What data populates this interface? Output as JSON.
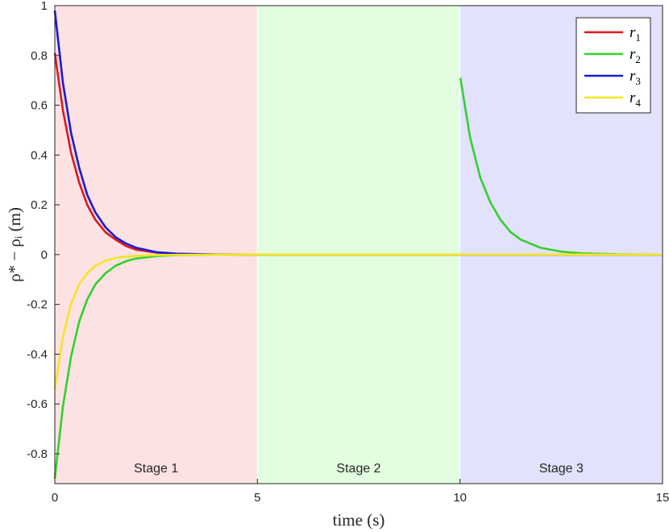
{
  "chart_data": {
    "type": "line",
    "xlabel": "time (s)",
    "ylabel": "ρ* − ρᵢ (m)",
    "xlim": [
      0,
      15
    ],
    "ylim": [
      -0.92,
      1.0
    ],
    "xticks": [
      0,
      5,
      10,
      15
    ],
    "xtick_labels": [
      "0",
      "5",
      "10",
      "15"
    ],
    "yticks": [
      1,
      0.8,
      0.6,
      0.4,
      0.2,
      0,
      -0.2,
      -0.4,
      -0.6,
      -0.8
    ],
    "ytick_labels": [
      "1",
      "0.8",
      "0.6",
      "0.4",
      "0.2",
      "0",
      "-0.2",
      "-0.4",
      "-0.6",
      "-0.8"
    ],
    "grid": false,
    "legend_position": "top-right",
    "stages": [
      {
        "label": "Stage 1",
        "x_start": 0,
        "x_end": 5,
        "color": "#fde2e4"
      },
      {
        "label": "Stage 2",
        "x_start": 5,
        "x_end": 10,
        "color": "#e2fde0"
      },
      {
        "label": "Stage 3",
        "x_start": 10,
        "x_end": 15,
        "color": "#e2e2fc"
      }
    ],
    "series": [
      {
        "name": "r",
        "sub": "1",
        "color": "#e0171d",
        "x": [
          0,
          0.2,
          0.4,
          0.6,
          0.8,
          1.0,
          1.25,
          1.5,
          1.75,
          2.0,
          2.5,
          3.0,
          4.0,
          5.0,
          7.5,
          10,
          12.5,
          15
        ],
        "y": [
          0.81,
          0.58,
          0.41,
          0.29,
          0.2,
          0.14,
          0.09,
          0.06,
          0.035,
          0.02,
          0.008,
          0.003,
          0.0005,
          0,
          0,
          0,
          0,
          0
        ]
      },
      {
        "name": "r",
        "sub": "2",
        "color": "#33d12c",
        "x": [
          0,
          0.2,
          0.4,
          0.6,
          0.8,
          1.0,
          1.25,
          1.5,
          1.75,
          2.0,
          2.5,
          3.0,
          4.0,
          5.0,
          7.5,
          10.0,
          10.01,
          10.25,
          10.5,
          10.75,
          11.0,
          11.25,
          11.5,
          12.0,
          12.5,
          13.0,
          14.0,
          15.0
        ],
        "y": [
          -0.9,
          -0.61,
          -0.41,
          -0.27,
          -0.18,
          -0.12,
          -0.075,
          -0.045,
          -0.027,
          -0.016,
          -0.006,
          -0.002,
          0,
          0,
          0,
          0,
          0.71,
          0.47,
          0.31,
          0.21,
          0.14,
          0.09,
          0.06,
          0.027,
          0.012,
          0.005,
          0.001,
          0
        ]
      },
      {
        "name": "r",
        "sub": "3",
        "color": "#1a1ad6",
        "x": [
          0,
          0.2,
          0.4,
          0.6,
          0.8,
          1.0,
          1.25,
          1.5,
          1.75,
          2.0,
          2.5,
          3.0,
          4.0,
          5.0,
          7.5,
          10,
          12.5,
          15
        ],
        "y": [
          0.98,
          0.69,
          0.49,
          0.35,
          0.24,
          0.17,
          0.11,
          0.07,
          0.045,
          0.028,
          0.01,
          0.004,
          0.0005,
          0,
          0,
          0,
          0,
          0
        ]
      },
      {
        "name": "r",
        "sub": "4",
        "color": "#f5e521",
        "x": [
          0,
          0.2,
          0.4,
          0.6,
          0.8,
          1.0,
          1.25,
          1.5,
          1.75,
          2.0,
          2.5,
          3.0,
          4.0,
          5.0,
          7.5,
          10,
          12.5,
          15
        ],
        "y": [
          -0.54,
          -0.33,
          -0.2,
          -0.12,
          -0.075,
          -0.045,
          -0.025,
          -0.014,
          -0.008,
          -0.005,
          -0.002,
          -0.001,
          0,
          0,
          0,
          0,
          0,
          0
        ]
      }
    ]
  }
}
